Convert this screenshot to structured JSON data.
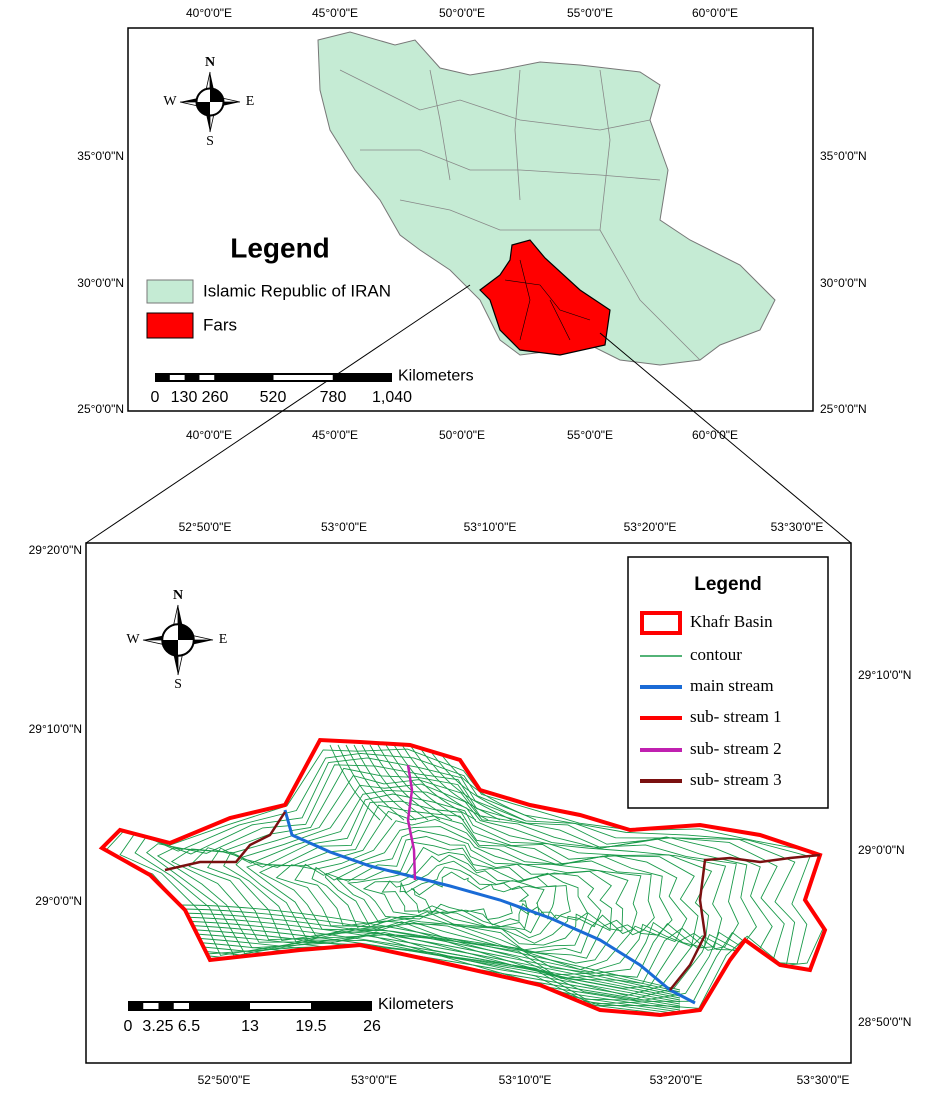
{
  "top_map": {
    "lon_labels": [
      "40°0'0\"E",
      "45°0'0\"E",
      "50°0'0\"E",
      "55°0'0\"E",
      "60°0'0\"E"
    ],
    "lat_labels": [
      "35°0'0\"N",
      "30°0'0\"N",
      "25°0'0\"N"
    ],
    "compass": {
      "n": "N",
      "w": "W",
      "e": "E",
      "s": "S"
    },
    "legend": {
      "title": "Legend",
      "items": [
        "Islamic Republic of IRAN",
        "Fars"
      ]
    },
    "scale": {
      "labels": [
        "0",
        "130",
        "260",
        "520",
        "780",
        "1,040"
      ],
      "unit": "Kilometers"
    }
  },
  "bottom_map": {
    "lon_labels": [
      "52°50'0\"E",
      "53°0'0\"E",
      "53°10'0\"E",
      "53°20'0\"E",
      "53°30'0\"E"
    ],
    "lat_labels_left": [
      "29°20'0\"N",
      "29°10'0\"N",
      "29°0'0\"N"
    ],
    "lat_labels_right": [
      "29°10'0\"N",
      "29°0'0\"N",
      "28°50'0\"N"
    ],
    "compass": {
      "n": "N",
      "w": "W",
      "e": "E",
      "s": "S"
    },
    "legend": {
      "title": "Legend",
      "items": [
        "Khafr Basin",
        "contour",
        "main stream",
        "sub- stream 1",
        "sub- stream 2",
        "sub- stream 3"
      ]
    },
    "scale": {
      "labels": [
        "0",
        "3.25",
        "6.5",
        "13",
        "19.5",
        "26"
      ],
      "unit": "Kilometers"
    }
  }
}
